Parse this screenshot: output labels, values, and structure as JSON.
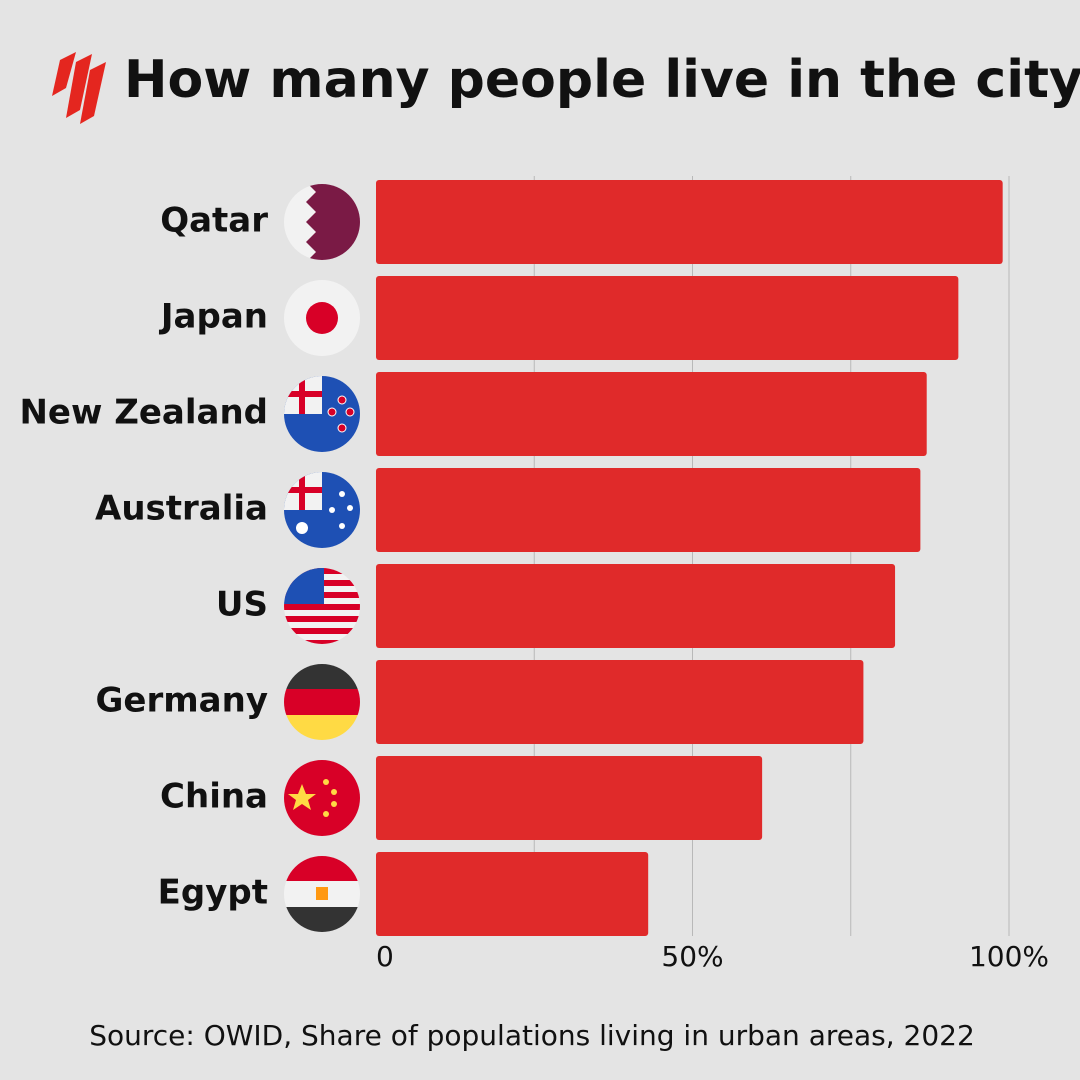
{
  "chart_data": {
    "type": "hbar",
    "title": "How many people live in the city?",
    "source": "Source: OWID, Share of populations living in urban areas, 2022",
    "categories": [
      "Qatar",
      "Japan",
      "New Zealand",
      "Australia",
      "US",
      "Germany",
      "China",
      "Egypt"
    ],
    "values": [
      99,
      92,
      87,
      86,
      82,
      77,
      61,
      43
    ],
    "color": "#e02a2a",
    "xlim": [
      0,
      100
    ],
    "xticks": [
      0,
      {
        "value": 50,
        "label": "50%"
      },
      {
        "value": 100,
        "label": "100%"
      }
    ],
    "grid_lines": [
      25,
      50,
      75,
      100
    ]
  }
}
